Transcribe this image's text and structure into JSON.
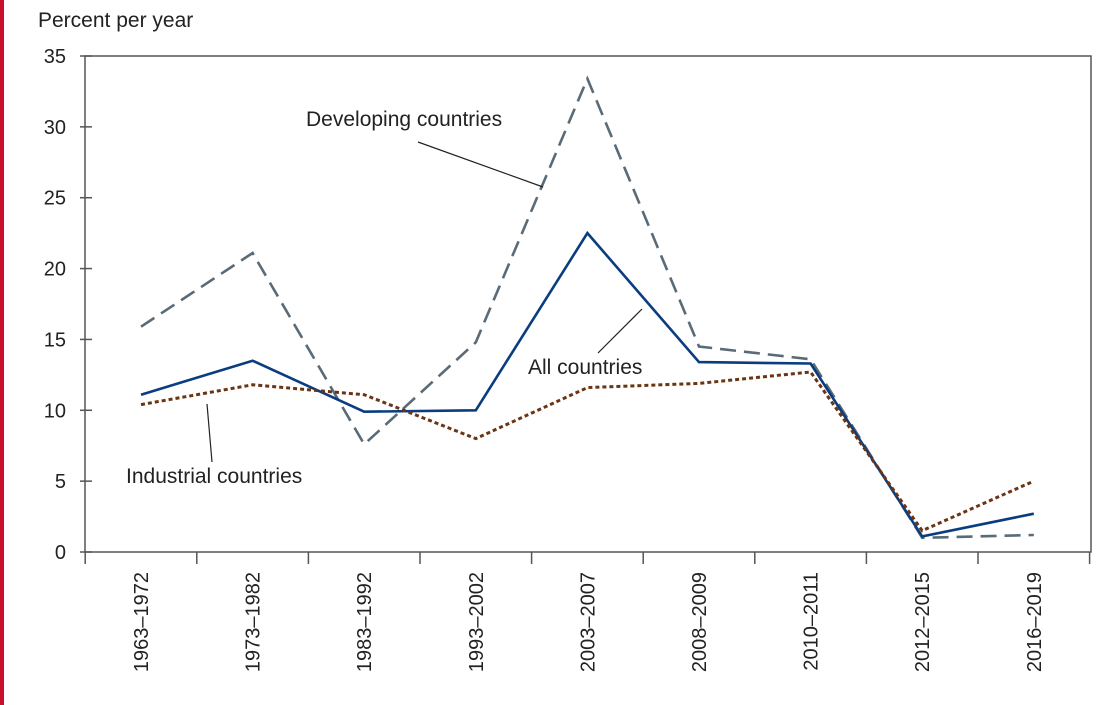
{
  "chart_data": {
    "type": "line",
    "ylabel": "Percent per year",
    "ylim": [
      0,
      35
    ],
    "yticks": [
      0,
      5,
      10,
      15,
      20,
      25,
      30,
      35
    ],
    "categories": [
      "1963–1972",
      "1973–1982",
      "1983–1992",
      "1993–2002",
      "2003–2007",
      "2008–2009",
      "2010–2011",
      "2012–2015",
      "2016–2019"
    ],
    "series": [
      {
        "name": "Developing countries",
        "values": [
          15.9,
          21.1,
          7.6,
          14.8,
          33.4,
          14.5,
          13.6,
          1.0,
          1.2
        ],
        "color": "#5a6b78",
        "dash": "dashed"
      },
      {
        "name": "All countries",
        "values": [
          11.1,
          13.5,
          9.9,
          10.0,
          22.5,
          13.4,
          13.3,
          1.1,
          2.7
        ],
        "color": "#0a3d80",
        "dash": "solid"
      },
      {
        "name": "Industrial countries",
        "values": [
          10.4,
          11.8,
          11.1,
          8.0,
          11.6,
          11.9,
          12.7,
          1.5,
          5.0
        ],
        "color": "#6b3412",
        "dash": "dotted"
      }
    ],
    "grid": false,
    "legend": "inline-labels"
  },
  "colors": {
    "accent_bar": "#c8102e"
  }
}
